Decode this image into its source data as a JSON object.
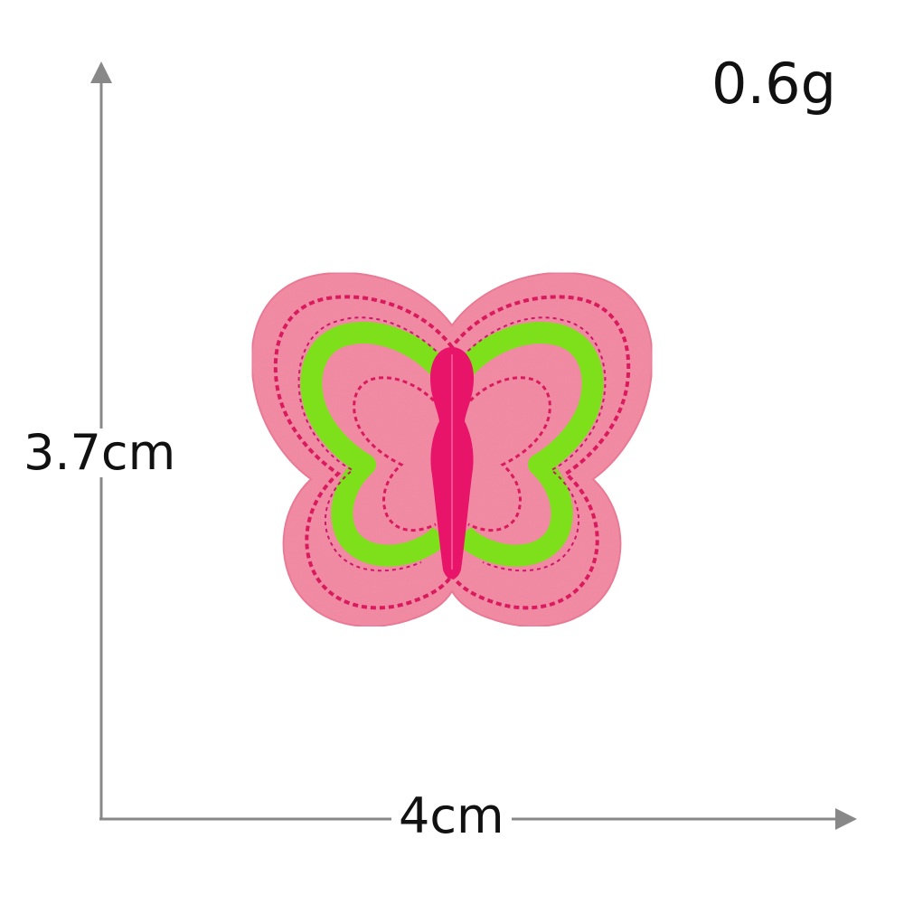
{
  "measurements": {
    "weight": "0.6g",
    "height": "3.7cm",
    "width": "4cm"
  },
  "product": {
    "image": "butterfly-embroidered-patch",
    "colors": {
      "felt": "#f78fa7",
      "body": "#e8146a",
      "wing_outline": "#7ee01a",
      "stitch": "#d91a5e"
    }
  },
  "colors": {
    "axis": "#888888",
    "text": "#111111",
    "background": "#ffffff"
  }
}
